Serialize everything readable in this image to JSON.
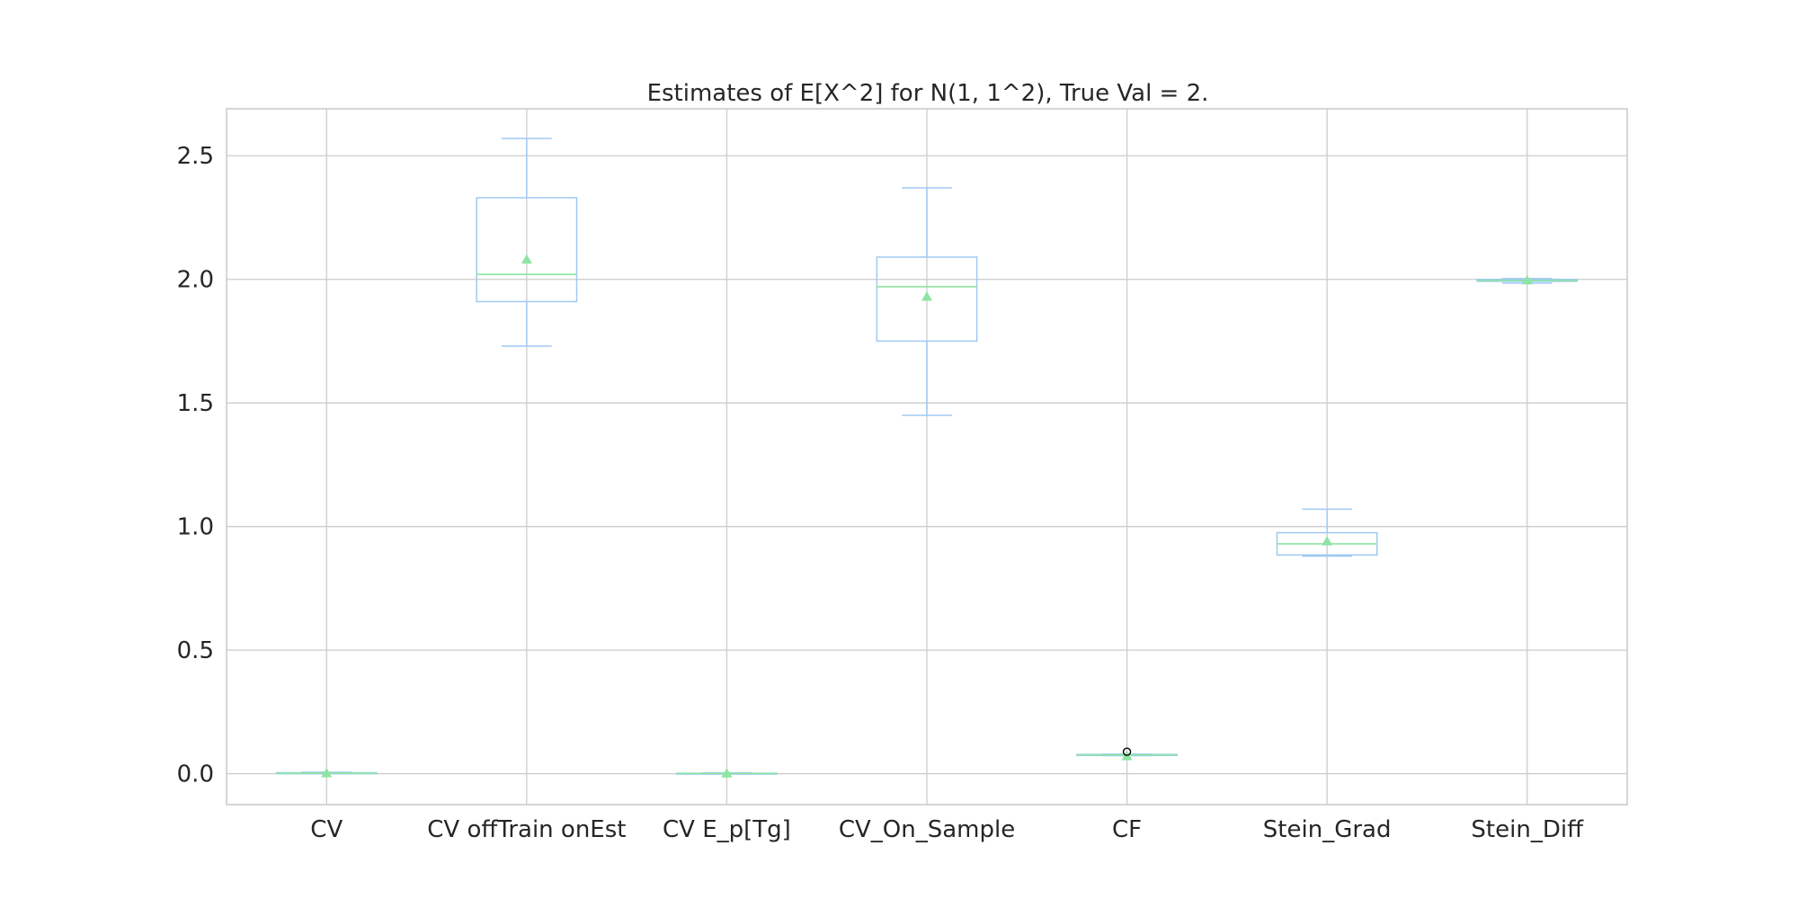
{
  "chart_data": {
    "type": "box",
    "title": "Estimates of E[X^2] for N(1, 1^2), True Val = 2.",
    "xlabel": "",
    "ylabel": "",
    "categories": [
      "CV",
      "CV offTrain onEst",
      "CV E_p[Tg]",
      "CV_On_Sample",
      "CF",
      "Stein_Grad",
      "Stein_Diff"
    ],
    "boxes": [
      {
        "whislo": 0.0,
        "q1": 0.0,
        "med": 0.002,
        "q3": 0.004,
        "whishi": 0.006,
        "mean": 0.002,
        "fliers": []
      },
      {
        "whislo": 1.73,
        "q1": 1.91,
        "med": 2.02,
        "q3": 2.33,
        "whishi": 2.57,
        "mean": 2.08,
        "fliers": []
      },
      {
        "whislo": 0.0,
        "q1": 0.0,
        "med": 0.001,
        "q3": 0.002,
        "whishi": 0.003,
        "mean": 0.001,
        "fliers": []
      },
      {
        "whislo": 1.45,
        "q1": 1.75,
        "med": 1.97,
        "q3": 2.09,
        "whishi": 2.37,
        "mean": 1.93,
        "fliers": []
      },
      {
        "whislo": 0.073,
        "q1": 0.074,
        "med": 0.076,
        "q3": 0.078,
        "whishi": 0.079,
        "mean": 0.071,
        "fliers": [
          0.089
        ]
      },
      {
        "whislo": 0.88,
        "q1": 0.885,
        "med": 0.93,
        "q3": 0.975,
        "whishi": 1.07,
        "mean": 0.94,
        "fliers": []
      },
      {
        "whislo": 1.985,
        "q1": 1.992,
        "med": 1.996,
        "q3": 2.0,
        "whishi": 2.003,
        "mean": 1.996,
        "fliers": []
      }
    ],
    "yticks": [
      0.0,
      0.5,
      1.0,
      1.5,
      2.0,
      2.5
    ],
    "ytick_labels": [
      "0.0",
      "0.5",
      "1.0",
      "1.5",
      "2.0",
      "2.5"
    ],
    "ylim": [
      -0.125,
      2.69
    ],
    "grid": true,
    "legend": "none",
    "colors": {
      "box": "#a1c9f4",
      "median": "#8de5a1",
      "mean_marker": "#8de5a1",
      "flier": "#000000",
      "grid": "#cccccc"
    }
  }
}
